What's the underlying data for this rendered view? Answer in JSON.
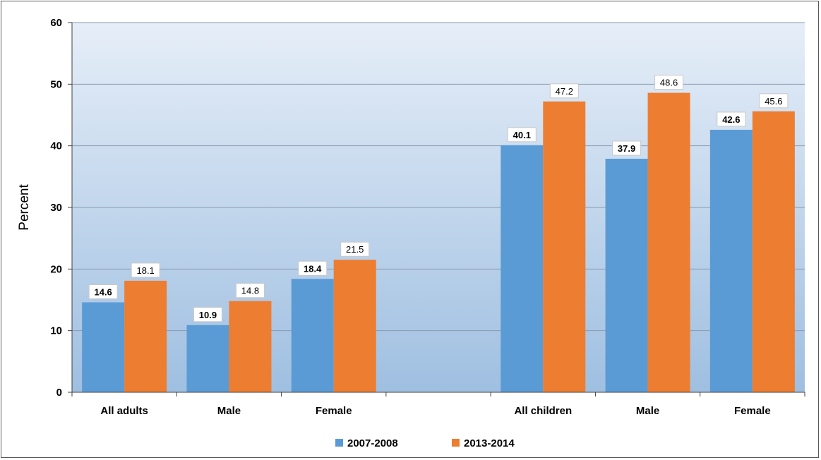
{
  "chart_data": {
    "type": "bar",
    "title": "",
    "xlabel": "",
    "ylabel": "Percent",
    "ylim": [
      0,
      60
    ],
    "yticks": [
      0,
      10,
      20,
      30,
      40,
      50,
      60
    ],
    "grid": true,
    "legend_position": "bottom",
    "categories": [
      "All adults",
      "Male",
      "Female",
      "",
      "All children",
      "Male",
      "Female"
    ],
    "series": [
      {
        "name": "2007-2008",
        "color": "#5b9bd5",
        "values": [
          14.6,
          10.9,
          18.4,
          null,
          40.1,
          37.9,
          42.6
        ]
      },
      {
        "name": "2013-2014",
        "color": "#ed7d31",
        "values": [
          18.1,
          14.8,
          21.5,
          null,
          47.2,
          48.6,
          45.6
        ]
      }
    ],
    "data_labels": [
      [
        "14.6",
        "10.9",
        "18.4",
        null,
        "40.1",
        "37.9",
        "42.6"
      ],
      [
        "18.1",
        "14.8",
        "21.5",
        null,
        "47.2",
        "48.6",
        "45.6"
      ]
    ]
  }
}
